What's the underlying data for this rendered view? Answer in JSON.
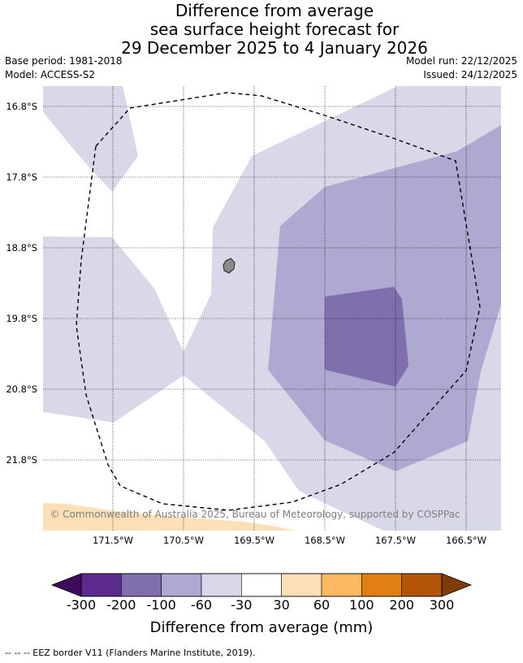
{
  "title": {
    "line1": "Difference from average",
    "line2": "sea surface height forecast for",
    "line3": "29 December 2025 to 4 January 2026"
  },
  "meta": {
    "base_period": "Base period: 1981-2018",
    "model": "Model: ACCESS-S2",
    "model_run": "Model run: 22/12/2025",
    "issued": "Issued: 24/12/2025"
  },
  "map": {
    "lat_labels": [
      "16.8°S",
      "17.8°S",
      "18.8°S",
      "19.8°S",
      "20.8°S",
      "21.8°S"
    ],
    "lon_labels": [
      "171.5°W",
      "170.5°W",
      "169.5°W",
      "168.5°W",
      "167.5°W",
      "166.5°W"
    ],
    "copyright": "© Commonwealth of Australia 2025, Bureau of Meteorology, supported by COSPPac",
    "zone_colors": {
      "neutral": "#ffffff",
      "band_m30_m60": "#d8d8e9",
      "band_m60_m100": "#afa8d0",
      "band_m100_m200": "#7f70ad",
      "band_p30_p60": "#fde0b8",
      "land": "#8a8a8a"
    }
  },
  "colorbar": {
    "ticks": [
      "-300",
      "-200",
      "-100",
      "-60",
      "-30",
      "30",
      "60",
      "100",
      "200",
      "300"
    ],
    "colors": [
      "#5c2a8d",
      "#7f70ad",
      "#afa8d0",
      "#d8d8e9",
      "#ffffff",
      "#fde0b8",
      "#fbb861",
      "#e07f12",
      "#b25606"
    ],
    "under_color": "#3d0a5e",
    "over_color": "#7f3b08",
    "label": "Difference from average (mm)"
  },
  "footer": {
    "legend_text": "--  --  -- EEZ border V11 (Flanders Marine Institute, 2019)."
  }
}
